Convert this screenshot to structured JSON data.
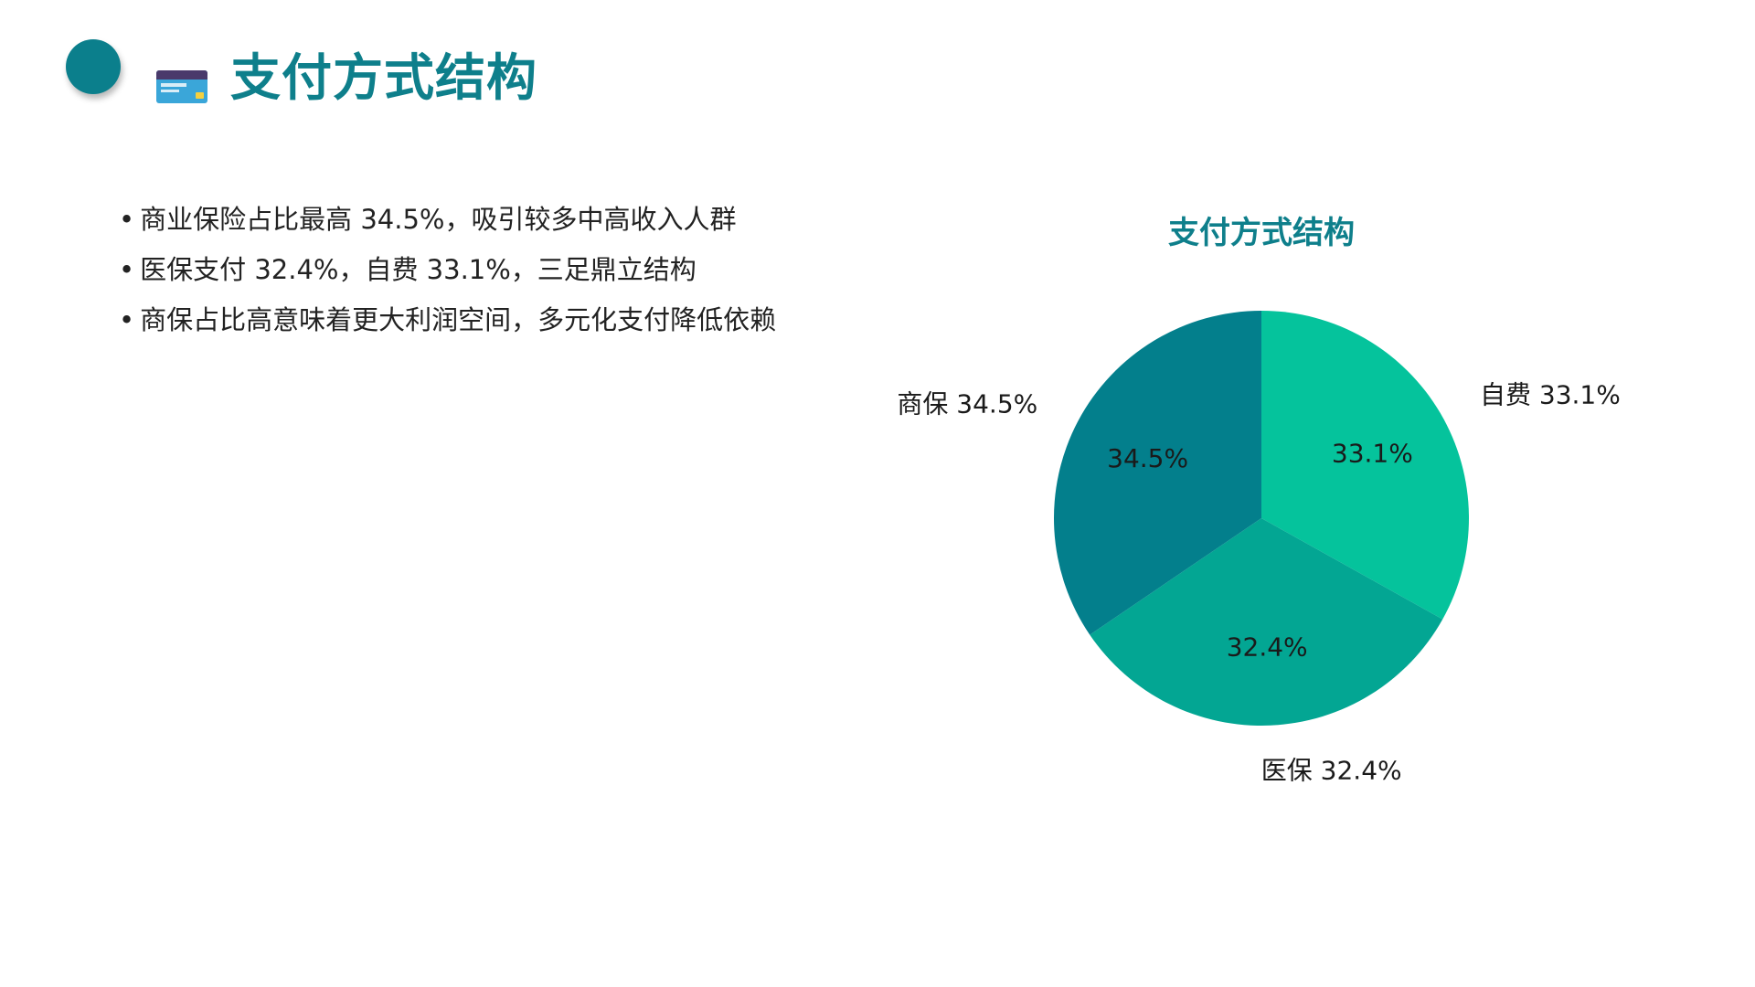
{
  "header": {
    "title": "支付方式结构",
    "icon": "credit-card-icon",
    "accent_color": "#0b7f8c"
  },
  "bullets": [
    "商业保险占比最高 34.5%，吸引较多中高收入人群",
    "医保支付 32.4%，自费 33.1%，三足鼎立结构",
    "商保占比高意味着更大利润空间，多元化支付降低依赖"
  ],
  "chart_data": {
    "type": "pie",
    "title": "支付方式结构",
    "slices": [
      {
        "label": "自费",
        "value": 33.1,
        "color": "#05c39c",
        "outer_label": "自费 33.1%",
        "inner_label": "33.1%"
      },
      {
        "label": "医保",
        "value": 32.4,
        "color": "#03a693",
        "outer_label": "医保 32.4%",
        "inner_label": "32.4%"
      },
      {
        "label": "商保",
        "value": 34.5,
        "color": "#037f8c",
        "outer_label": "商保 34.5%",
        "inner_label": "34.5%"
      }
    ],
    "start_angle": "12 o'clock",
    "direction": "clockwise",
    "legend": "none"
  }
}
